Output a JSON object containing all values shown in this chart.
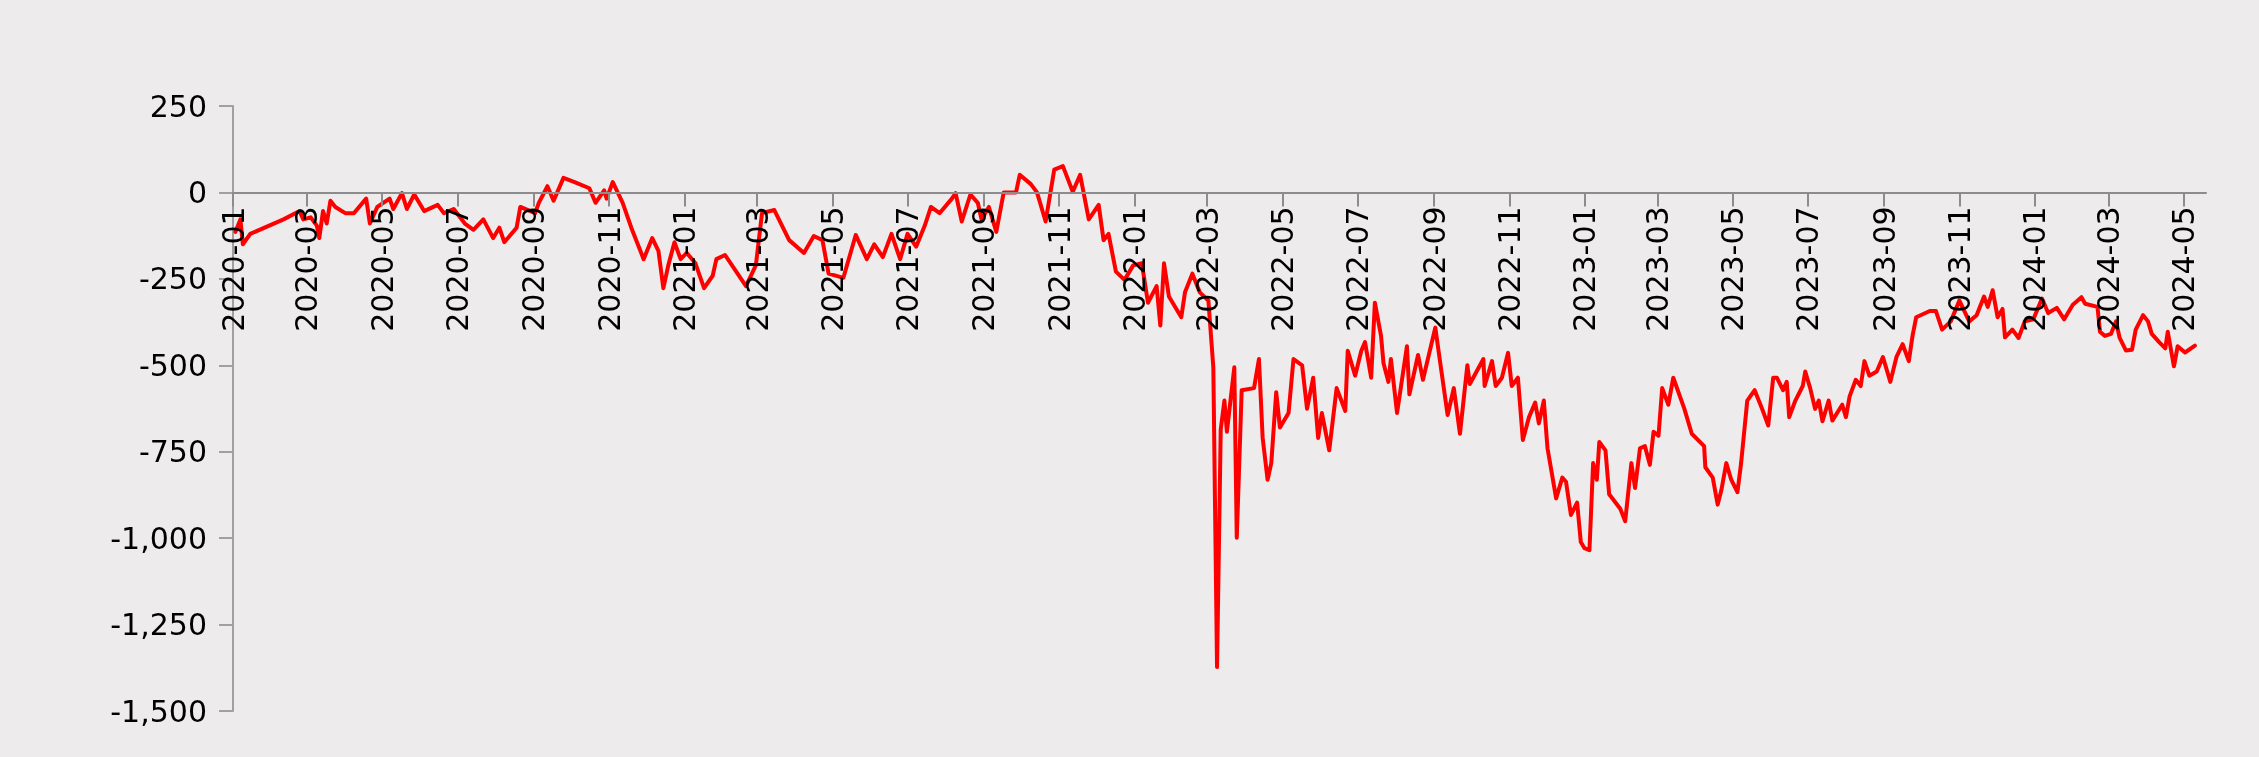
{
  "chart_data": {
    "type": "line",
    "marker": "none",
    "line_style": "solid",
    "grid": false,
    "xlim": [
      "2020-01-01",
      "2024-05-19"
    ],
    "xticks": [
      "2020-01",
      "2020-03",
      "2020-05",
      "2020-07",
      "2020-09",
      "2020-11",
      "2021-01",
      "2021-03",
      "2021-05",
      "2021-07",
      "2021-09",
      "2021-11",
      "2022-01",
      "2022-03",
      "2022-05",
      "2022-07",
      "2022-09",
      "2022-11",
      "2023-01",
      "2023-03",
      "2023-05",
      "2023-07",
      "2023-09",
      "2023-11",
      "2024-01",
      "2024-03",
      "2024-05"
    ],
    "ylim": [
      -1500,
      250
    ],
    "yticks": [
      {
        "value": -1500,
        "label": "-1,500"
      },
      {
        "value": -1250,
        "label": "-1,250"
      },
      {
        "value": -1000,
        "label": "-1,000"
      },
      -750,
      -500,
      -250,
      0,
      250
    ],
    "series": [
      {
        "color": "#ff0000",
        "x": [
          "2020-01-03",
          "2020-01-07",
          "2020-01-09",
          "2020-01-15",
          "2020-02-11",
          "2020-02-24",
          "2020-02-27",
          "2020-03-04",
          "2020-03-09",
          "2020-03-11",
          "2020-03-14",
          "2020-03-17",
          "2020-03-20",
          "2020-03-24",
          "2020-04-01",
          "2020-04-08",
          "2020-04-18",
          "2020-04-21",
          "2020-04-27",
          "2020-05-07",
          "2020-05-10",
          "2020-05-17",
          "2020-05-21",
          "2020-05-27",
          "2020-06-04",
          "2020-06-15",
          "2020-06-20",
          "2020-06-28",
          "2020-07-07",
          "2020-07-14",
          "2020-07-22",
          "2020-07-30",
          "2020-08-04",
          "2020-08-08",
          "2020-08-18",
          "2020-08-21",
          "2020-09-02",
          "2020-09-05",
          "2020-09-12",
          "2020-09-17",
          "2020-09-25",
          "2020-10-04",
          "2020-10-16",
          "2020-10-21",
          "2020-10-28",
          "2020-10-30",
          "2020-11-04",
          "2020-11-12",
          "2020-11-19",
          "2020-11-29",
          "2020-12-06",
          "2020-12-11",
          "2020-12-15",
          "2020-12-19",
          "2020-12-24",
          "2020-12-29",
          "2021-01-03",
          "2021-01-10",
          "2021-01-17",
          "2021-01-24",
          "2021-01-27",
          "2021-02-03",
          "2021-02-20",
          "2021-02-28",
          "2021-03-05",
          "2021-03-15",
          "2021-03-27",
          "2021-04-08",
          "2021-04-16",
          "2021-04-23",
          "2021-04-28",
          "2021-05-10",
          "2021-05-20",
          "2021-05-29",
          "2021-06-04",
          "2021-06-11",
          "2021-06-18",
          "2021-06-25",
          "2021-07-01",
          "2021-07-08",
          "2021-07-15",
          "2021-07-20",
          "2021-07-27",
          "2021-08-06",
          "2021-08-09",
          "2021-08-14",
          "2021-08-21",
          "2021-08-27",
          "2021-08-30",
          "2021-09-05",
          "2021-09-11",
          "2021-09-17",
          "2021-09-27",
          "2021-09-30",
          "2021-10-09",
          "2021-10-14",
          "2021-10-21",
          "2021-10-28",
          "2021-11-04",
          "2021-11-12",
          "2021-11-18",
          "2021-11-25",
          "2021-12-03",
          "2021-12-07",
          "2021-12-11",
          "2021-12-17",
          "2021-12-24",
          "2021-12-31",
          "2022-01-07",
          "2022-01-12",
          "2022-01-19",
          "2022-01-22",
          "2022-01-25",
          "2022-01-29",
          "2022-02-08",
          "2022-02-11",
          "2022-02-17",
          "2022-02-23",
          "2022-03-02",
          "2022-03-06",
          "2022-03-09",
          "2022-03-12",
          "2022-03-15",
          "2022-03-17",
          "2022-03-23",
          "2022-03-25",
          "2022-03-29",
          "2022-04-08",
          "2022-04-12",
          "2022-04-15",
          "2022-04-19",
          "2022-04-22",
          "2022-04-26",
          "2022-04-29",
          "2022-05-06",
          "2022-05-10",
          "2022-05-17",
          "2022-05-21",
          "2022-05-26",
          "2022-05-30",
          "2022-06-02",
          "2022-06-08",
          "2022-06-14",
          "2022-06-21",
          "2022-06-23",
          "2022-06-29",
          "2022-07-04",
          "2022-07-07",
          "2022-07-12",
          "2022-07-15",
          "2022-07-20",
          "2022-07-22",
          "2022-07-26",
          "2022-07-28",
          "2022-08-02",
          "2022-08-10",
          "2022-08-12",
          "2022-08-19",
          "2022-08-23",
          "2022-09-02",
          "2022-09-07",
          "2022-09-12",
          "2022-09-17",
          "2022-09-22",
          "2022-09-28",
          "2022-09-30",
          "2022-10-11",
          "2022-10-12",
          "2022-10-18",
          "2022-10-21",
          "2022-10-26",
          "2022-10-31",
          "2022-11-03",
          "2022-11-08",
          "2022-11-12",
          "2022-11-17",
          "2022-11-22",
          "2022-11-25",
          "2022-11-29",
          "2022-12-02",
          "2022-12-09",
          "2022-12-14",
          "2022-12-17",
          "2022-12-21",
          "2022-12-26",
          "2022-12-29",
          "2023-01-01",
          "2023-01-05",
          "2023-01-08",
          "2023-01-11",
          "2023-01-13",
          "2023-01-18",
          "2023-01-21",
          "2023-01-30",
          "2023-02-03",
          "2023-02-08",
          "2023-02-11",
          "2023-02-15",
          "2023-02-19",
          "2023-02-23",
          "2023-02-26",
          "2023-03-02",
          "2023-03-05",
          "2023-03-10",
          "2023-03-14",
          "2023-03-23",
          "2023-03-29",
          "2023-04-08",
          "2023-04-09",
          "2023-04-15",
          "2023-04-19",
          "2023-04-22",
          "2023-04-26",
          "2023-04-30",
          "2023-05-05",
          "2023-05-08",
          "2023-05-13",
          "2023-05-19",
          "2023-05-25",
          "2023-05-30",
          "2023-06-03",
          "2023-06-06",
          "2023-06-11",
          "2023-06-14",
          "2023-06-16",
          "2023-06-21",
          "2023-06-27",
          "2023-06-29",
          "2023-07-03",
          "2023-07-07",
          "2023-07-10",
          "2023-07-13",
          "2023-07-18",
          "2023-07-21",
          "2023-07-29",
          "2023-08-01",
          "2023-08-04",
          "2023-08-09",
          "2023-08-13",
          "2023-08-16",
          "2023-08-20",
          "2023-08-26",
          "2023-08-31",
          "2023-09-06",
          "2023-09-11",
          "2023-09-16",
          "2023-09-21",
          "2023-09-24",
          "2023-09-27",
          "2023-10-08",
          "2023-10-13",
          "2023-10-18",
          "2023-10-25",
          "2023-11-01",
          "2023-11-09",
          "2023-11-15",
          "2023-11-21",
          "2023-11-24",
          "2023-11-28",
          "2023-12-02",
          "2023-12-06",
          "2023-12-08",
          "2023-12-14",
          "2023-12-19",
          "2023-12-24",
          "2023-12-31",
          "2024-01-07",
          "2024-01-12",
          "2024-01-19",
          "2024-01-25",
          "2024-02-01",
          "2024-02-08",
          "2024-02-11",
          "2024-02-21",
          "2024-02-23",
          "2024-02-27",
          "2024-03-03",
          "2024-03-07",
          "2024-03-10",
          "2024-03-15",
          "2024-03-20",
          "2024-03-23",
          "2024-03-29",
          "2024-04-02",
          "2024-04-05",
          "2024-04-11",
          "2024-04-16",
          "2024-04-18",
          "2024-04-23",
          "2024-04-26",
          "2024-05-02",
          "2024-05-10"
        ],
        "values": [
          -114,
          -78,
          -150,
          -120,
          -78,
          -54,
          -78,
          -72,
          -96,
          -132,
          -54,
          -90,
          -24,
          -42,
          -60,
          -60,
          -18,
          -90,
          -42,
          -18,
          -48,
          -2,
          -48,
          -6,
          -54,
          -36,
          -60,
          -48,
          -90,
          -108,
          -78,
          -132,
          -102,
          -144,
          -102,
          -42,
          -60,
          -30,
          18,
          -24,
          42,
          30,
          12,
          -30,
          6,
          -18,
          30,
          -30,
          -102,
          -193,
          -132,
          -169,
          -277,
          -211,
          -144,
          -193,
          -175,
          -205,
          -277,
          -241,
          -193,
          -181,
          -271,
          -211,
          -60,
          -51,
          -138,
          -175,
          -126,
          -138,
          -235,
          -247,
          -123,
          -193,
          -150,
          -187,
          -120,
          -193,
          -120,
          -157,
          -96,
          -42,
          -60,
          -18,
          -2,
          -84,
          -6,
          -30,
          -78,
          -42,
          -114,
          0,
          0,
          51,
          24,
          0,
          -84,
          66,
          76,
          2,
          51,
          -78,
          -36,
          -138,
          -120,
          -229,
          -253,
          -211,
          -205,
          -319,
          -271,
          -385,
          -205,
          -301,
          -361,
          -289,
          -235,
          -289,
          -313,
          -506,
          -1373,
          -686,
          -602,
          -692,
          -506,
          -999,
          -572,
          -566,
          -482,
          -710,
          -831,
          -783,
          -578,
          -680,
          -638,
          -482,
          -500,
          -626,
          -536,
          -710,
          -638,
          -746,
          -566,
          -632,
          -458,
          -530,
          -458,
          -433,
          -536,
          -319,
          -415,
          -494,
          -548,
          -482,
          -638,
          -445,
          -584,
          -470,
          -542,
          -391,
          -518,
          -644,
          -566,
          -698,
          -500,
          -554,
          -482,
          -560,
          -488,
          -560,
          -536,
          -464,
          -560,
          -536,
          -716,
          -650,
          -608,
          -668,
          -602,
          -740,
          -885,
          -825,
          -837,
          -933,
          -897,
          -1011,
          -1029,
          -1035,
          -783,
          -831,
          -722,
          -746,
          -873,
          -915,
          -951,
          -783,
          -855,
          -740,
          -734,
          -788,
          -692,
          -704,
          -566,
          -614,
          -536,
          -626,
          -698,
          -734,
          -795,
          -825,
          -903,
          -861,
          -783,
          -831,
          -867,
          -783,
          -602,
          -572,
          -626,
          -674,
          -536,
          -536,
          -572,
          -548,
          -650,
          -602,
          -560,
          -518,
          -566,
          -626,
          -602,
          -662,
          -602,
          -660,
          -614,
          -650,
          -590,
          -542,
          -560,
          -488,
          -530,
          -518,
          -476,
          -548,
          -476,
          -439,
          -488,
          -415,
          -361,
          -343,
          -343,
          -397,
          -373,
          -313,
          -373,
          -355,
          -301,
          -331,
          -283,
          -361,
          -337,
          -419,
          -397,
          -421,
          -373,
          -367,
          -307,
          -349,
          -334,
          -367,
          -325,
          -303,
          -322,
          -331,
          -403,
          -415,
          -409,
          -373,
          -421,
          -457,
          -455,
          -397,
          -355,
          -373,
          -409,
          -433,
          -451,
          -403,
          -503,
          -445,
          -463,
          -443
        ]
      }
    ]
  }
}
